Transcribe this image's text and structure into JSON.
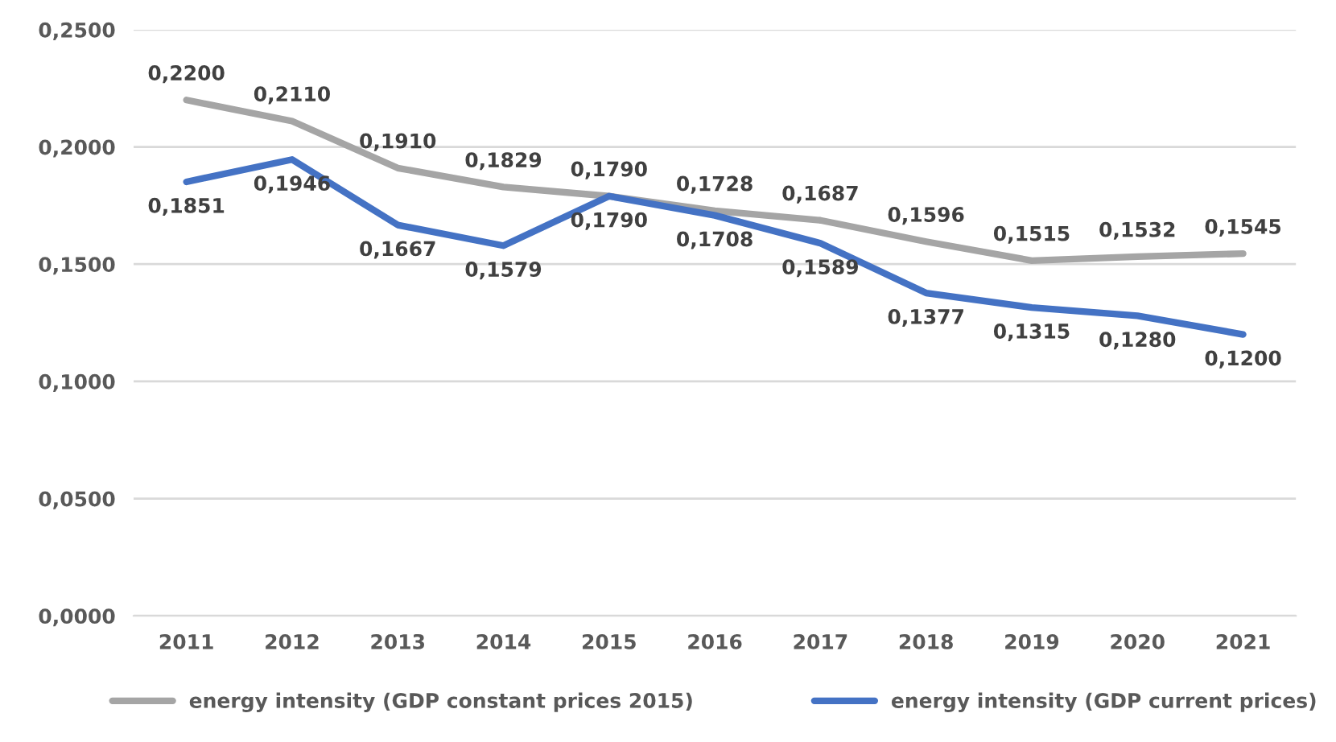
{
  "chart_data": {
    "type": "line",
    "categories": [
      "2011",
      "2012",
      "2013",
      "2014",
      "2015",
      "2016",
      "2017",
      "2018",
      "2019",
      "2020",
      "2021"
    ],
    "series": [
      {
        "name": "energy intensity (GDP constant prices 2015)",
        "color": "#a5a5a5",
        "values": [
          0.22,
          0.211,
          0.191,
          0.1829,
          0.179,
          0.1728,
          0.1687,
          0.1596,
          0.1515,
          0.1532,
          0.1545
        ],
        "value_labels": [
          "0,2200",
          "0,2110",
          "0,1910",
          "0,1829",
          "0,1790",
          "0,1728",
          "0,1687",
          "0,1596",
          "0,1515",
          "0,1532",
          "0,1545"
        ]
      },
      {
        "name": "energy intensity (GDP current prices)",
        "color": "#4472c4",
        "values": [
          0.1851,
          0.1946,
          0.1667,
          0.1579,
          0.179,
          0.1708,
          0.1589,
          0.1377,
          0.1315,
          0.128,
          0.12
        ],
        "value_labels": [
          "0,1851",
          "0,1946",
          "0,1667",
          "0,1579",
          "0,1790",
          "0,1708",
          "0,1589",
          "0,1377",
          "0,1315",
          "0,1280",
          "0,1200"
        ]
      }
    ],
    "ylim": [
      0,
      0.25
    ],
    "yticks": [
      {
        "value": 0,
        "label": "0,0000"
      },
      {
        "value": 0.05,
        "label": "0,0500"
      },
      {
        "value": 0.1,
        "label": "0,1000"
      },
      {
        "value": 0.15,
        "label": "0,1500"
      },
      {
        "value": 0.2,
        "label": "0,2000"
      },
      {
        "value": 0.25,
        "label": "0,2500"
      }
    ],
    "grid": "y",
    "legend": "bottom",
    "marker": "none",
    "line_style": "solid"
  }
}
